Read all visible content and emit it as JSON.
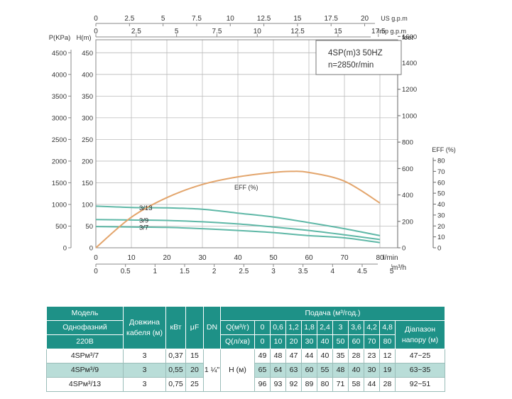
{
  "chart_data": {
    "type": "line",
    "model_title": "4SP(m)3  50HZ",
    "speed": "n=2850r/min",
    "x_main": {
      "label": "l/min",
      "ticks": [
        0,
        10,
        20,
        30,
        40,
        50,
        60,
        70,
        80
      ],
      "range": [
        0,
        85
      ]
    },
    "x_m3h": {
      "label": "m³/h",
      "ticks": [
        "0",
        "0.5",
        "1",
        "1.5",
        "2",
        "2.5",
        "3",
        "3.5",
        "4",
        "4.5",
        "5"
      ],
      "values": [
        0,
        0.5,
        1,
        1.5,
        2,
        2.5,
        3,
        3.5,
        4,
        4.5,
        5
      ]
    },
    "x_usgpm": {
      "label": "US g.p.m",
      "ticks": [
        "0",
        "2.5",
        "5",
        "7.5",
        "10",
        "12.5",
        "15",
        "17.5",
        "20"
      ],
      "values": [
        0,
        2.5,
        5,
        7.5,
        10,
        12.5,
        15,
        17.5,
        20
      ]
    },
    "x_impgpm": {
      "label": "Imp g.p.m",
      "ticks": [
        "0",
        "2.5",
        "5",
        "7.5",
        "10",
        "12.5",
        "15",
        "17.5"
      ],
      "values": [
        0,
        2.5,
        5,
        7.5,
        10,
        12.5,
        15,
        17.5
      ]
    },
    "y_head": {
      "label": "H(m)",
      "ticks": [
        0,
        50,
        100,
        150,
        200,
        250,
        300,
        350,
        400,
        450
      ],
      "range": [
        0,
        480
      ]
    },
    "y_kpa": {
      "label": "P(KPa)",
      "ticks": [
        0,
        500,
        1000,
        1500,
        2000,
        2500,
        3000,
        3500,
        4000,
        4500
      ]
    },
    "y_feet": {
      "label": "feet",
      "ticks": [
        0,
        200,
        400,
        600,
        800,
        1000,
        1200,
        1400,
        1600
      ]
    },
    "y_eff": {
      "label": "EFF (%)",
      "ticks": [
        0,
        10,
        20,
        30,
        40,
        50,
        60,
        70,
        80
      ]
    },
    "series": [
      {
        "name": "3/13",
        "color": "#5fb8a7",
        "x": [
          0,
          10,
          20,
          30,
          40,
          50,
          60,
          70,
          80
        ],
        "y": [
          96,
          93,
          92,
          89,
          80,
          71,
          58,
          44,
          28
        ]
      },
      {
        "name": "3/9",
        "color": "#5fb8a7",
        "x": [
          0,
          10,
          20,
          30,
          40,
          50,
          60,
          70,
          80
        ],
        "y": [
          65,
          64,
          63,
          60,
          55,
          48,
          40,
          30,
          19
        ]
      },
      {
        "name": "3/7",
        "color": "#5fb8a7",
        "x": [
          0,
          10,
          20,
          30,
          40,
          50,
          60,
          70,
          80
        ],
        "y": [
          49,
          48,
          47,
          44,
          40,
          35,
          28,
          23,
          12
        ]
      },
      {
        "name": "EFF (%)",
        "color": "#e3a56c",
        "x": [
          0,
          10,
          20,
          30,
          40,
          50,
          55,
          60,
          70,
          80
        ],
        "y": [
          0,
          28,
          46,
          58,
          65,
          69,
          70,
          69,
          61,
          41
        ]
      }
    ],
    "eff_label": "EFF (%)",
    "colors": {
      "grid": "#bbbbbb",
      "head": "#5fb8a7",
      "eff": "#e3a56c",
      "table_header": "#1e9187",
      "table_alt": "#b9ddd8"
    }
  },
  "table": {
    "h_model": "Модель",
    "h_phase": "Однофазний",
    "h_voltage": "220В",
    "h_cable": "Довжина кабеля (м)",
    "h_kw": "кВт",
    "h_uf": "μF",
    "h_dn": "DN",
    "h_flow": "Подача (м³/год.)",
    "h_qm3": "Q(м³/г)",
    "h_qls": "Q(л/хв)",
    "h_range": "Діапазон напору (м)",
    "qm3": [
      "0",
      "0,6",
      "1,2",
      "1,8",
      "2,4",
      "3",
      "3,6",
      "4,2",
      "4,8"
    ],
    "qls": [
      "0",
      "10",
      "20",
      "30",
      "40",
      "50",
      "60",
      "70",
      "80"
    ],
    "dn": "1 ¼\"",
    "h_label": "Н (м)",
    "rows": [
      {
        "model": "4SPм³/7",
        "cable": "3",
        "kw": "0,37",
        "uf": "15",
        "h": [
          "49",
          "48",
          "47",
          "44",
          "40",
          "35",
          "28",
          "23",
          "12"
        ],
        "range": "47~25"
      },
      {
        "model": "4SPм³/9",
        "cable": "3",
        "kw": "0,55",
        "uf": "20",
        "h": [
          "65",
          "64",
          "63",
          "60",
          "55",
          "48",
          "40",
          "30",
          "19"
        ],
        "range": "63~35"
      },
      {
        "model": "4SPм³/13",
        "cable": "3",
        "kw": "0,75",
        "uf": "25",
        "h": [
          "96",
          "93",
          "92",
          "89",
          "80",
          "71",
          "58",
          "44",
          "28"
        ],
        "range": "92~51"
      }
    ]
  }
}
